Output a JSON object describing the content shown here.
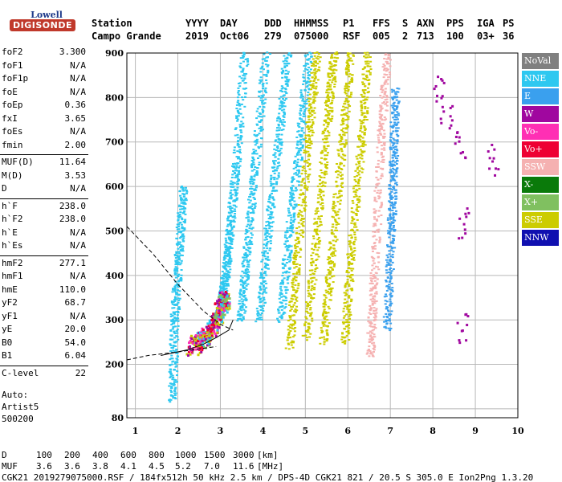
{
  "logo": {
    "line1": "Lowell",
    "line2": "DIGISONDE"
  },
  "header": {
    "labels": [
      "Station",
      "YYYY",
      "DAY",
      "DDD",
      "HHMMSS",
      "P1",
      "FFS",
      "S",
      "AXN",
      "PPS",
      "IGA",
      "PS"
    ],
    "values": [
      "Campo Grande",
      "2019",
      "Oct06",
      "279",
      "075000",
      "RSF",
      "005",
      "2",
      "713",
      "100",
      "03+",
      "36"
    ]
  },
  "params": [
    [
      [
        "foF2",
        "3.300"
      ],
      [
        "foF1",
        "N/A"
      ],
      [
        "foF1p",
        "N/A"
      ],
      [
        "foE",
        "N/A"
      ],
      [
        "foEp",
        "0.36"
      ],
      [
        "fxI",
        "3.65"
      ],
      [
        "foEs",
        "N/A"
      ],
      [
        "fmin",
        "2.00"
      ]
    ],
    [
      [
        "MUF(D)",
        "11.64"
      ],
      [
        "M(D)",
        "3.53"
      ],
      [
        "D",
        "N/A"
      ]
    ],
    [
      [
        "h`F",
        "238.0"
      ],
      [
        "h`F2",
        "238.0"
      ],
      [
        "h`E",
        "N/A"
      ],
      [
        "h`Es",
        "N/A"
      ]
    ],
    [
      [
        "hmF2",
        "277.1"
      ],
      [
        "hmF1",
        "N/A"
      ],
      [
        "hmE",
        "110.0"
      ],
      [
        "yF2",
        "68.7"
      ],
      [
        "yF1",
        "N/A"
      ],
      [
        "yE",
        "20.0"
      ],
      [
        "B0",
        "54.0"
      ],
      [
        "B1",
        "6.04"
      ]
    ],
    [
      [
        "C-level",
        "22"
      ]
    ]
  ],
  "auto": {
    "line1": "Auto:",
    "line2": "Artist5",
    "line3": "500200"
  },
  "legend": [
    {
      "label": "NoVal",
      "color": "#808080"
    },
    {
      "label": "NNE",
      "color": "#2ec8f0"
    },
    {
      "label": "E",
      "color": "#3aa0ee"
    },
    {
      "label": "W",
      "color": "#a0079f"
    },
    {
      "label": "Vo-",
      "color": "#ff2fb4"
    },
    {
      "label": "Vo+",
      "color": "#ee0033"
    },
    {
      "label": "SSW",
      "color": "#f5b1b1"
    },
    {
      "label": "X-",
      "color": "#0a7a0a"
    },
    {
      "label": "X+",
      "color": "#80c060"
    },
    {
      "label": "SSE",
      "color": "#cccc00"
    },
    {
      "label": "NNW",
      "color": "#1010b0"
    }
  ],
  "footer": {
    "d_label": "D",
    "d_values": [
      "100",
      "200",
      "400",
      "600",
      "800",
      "1000",
      "1500",
      "3000"
    ],
    "d_unit": "[km]",
    "muf_label": "MUF",
    "muf_values": [
      "3.6",
      "3.6",
      "3.8",
      "4.1",
      "4.5",
      "5.2",
      "7.0",
      "11.6"
    ],
    "muf_unit": "[MHz]",
    "info": "CGK21_2019279075000.RSF / 184fx512h 50 kHz 2.5 km / DPS-4D CGK21 821 / 20.5 S 305.0 E Ion2Png 1.3.20"
  },
  "chart_data": {
    "type": "scatter",
    "xlim": [
      0.8,
      10
    ],
    "ylim": [
      80,
      900
    ],
    "x_ticks": [
      1,
      2,
      3,
      4,
      5,
      6,
      7,
      8,
      9,
      10
    ],
    "y_ticks": [
      100,
      200,
      300,
      400,
      500,
      600,
      700,
      800,
      900
    ],
    "y_tick_labels": [
      "",
      "200",
      "300",
      "400",
      "500",
      "600",
      "700",
      "800",
      "900"
    ],
    "y_bottom_label": "80",
    "grid": true,
    "echo_traces": [
      {
        "color": "#2ec8f0",
        "points": [
          [
            2.9,
            300
          ],
          [
            3.0,
            330
          ],
          [
            3.1,
            400
          ],
          [
            3.2,
            500
          ],
          [
            3.35,
            650
          ],
          [
            3.55,
            900
          ]
        ]
      },
      {
        "color": "#2ec8f0",
        "points": [
          [
            3.45,
            300
          ],
          [
            3.6,
            450
          ],
          [
            3.8,
            650
          ],
          [
            4.05,
            900
          ]
        ]
      },
      {
        "color": "#2ec8f0",
        "points": [
          [
            3.9,
            300
          ],
          [
            4.1,
            500
          ],
          [
            4.35,
            700
          ],
          [
            4.55,
            900
          ]
        ]
      },
      {
        "color": "#2ec8f0",
        "points": [
          [
            4.4,
            300
          ],
          [
            4.6,
            500
          ],
          [
            4.85,
            700
          ],
          [
            5.05,
            900
          ]
        ]
      },
      {
        "color": "#cccc00",
        "points": [
          [
            4.6,
            240
          ],
          [
            4.8,
            450
          ],
          [
            5.05,
            700
          ],
          [
            5.25,
            900
          ]
        ]
      },
      {
        "color": "#cccc00",
        "points": [
          [
            5.0,
            260
          ],
          [
            5.25,
            500
          ],
          [
            5.5,
            750
          ],
          [
            5.65,
            900
          ]
        ]
      },
      {
        "color": "#cccc00",
        "points": [
          [
            5.4,
            250
          ],
          [
            5.6,
            450
          ],
          [
            5.85,
            700
          ],
          [
            6.05,
            900
          ]
        ]
      },
      {
        "color": "#cccc00",
        "points": [
          [
            5.9,
            250
          ],
          [
            6.05,
            450
          ],
          [
            6.3,
            700
          ],
          [
            6.45,
            900
          ]
        ]
      },
      {
        "color": "#f5b1b1",
        "points": [
          [
            6.5,
            220
          ],
          [
            6.6,
            400
          ],
          [
            6.75,
            700
          ],
          [
            6.9,
            900
          ]
        ]
      },
      {
        "color": "#2ec8f0",
        "points": [
          [
            1.85,
            120
          ],
          [
            1.9,
            300
          ],
          [
            2.0,
            450
          ],
          [
            2.1,
            600
          ]
        ]
      },
      {
        "color": "#3aa0ee",
        "points": [
          [
            6.9,
            280
          ],
          [
            7.0,
            500
          ],
          [
            7.05,
            650
          ],
          [
            7.1,
            820
          ]
        ]
      }
    ],
    "low_cluster": {
      "color": "#ee0033",
      "points": [
        [
          2.3,
          240
        ],
        [
          2.6,
          260
        ],
        [
          2.85,
          290
        ],
        [
          3.0,
          330
        ],
        [
          3.1,
          350
        ]
      ]
    },
    "profile_curve": {
      "color": "#000000",
      "points": [
        [
          1.6,
          220
        ],
        [
          2.2,
          232
        ],
        [
          2.6,
          245
        ],
        [
          2.9,
          260
        ],
        [
          3.2,
          277
        ],
        [
          3.3,
          300
        ]
      ]
    },
    "dashed_curve": {
      "color": "#000000",
      "points": [
        [
          0.8,
          510
        ],
        [
          1.4,
          450
        ],
        [
          2.0,
          380
        ],
        [
          2.6,
          320
        ],
        [
          3.0,
          290
        ],
        [
          3.3,
          277
        ]
      ]
    },
    "lower_dashed": {
      "color": "#000000",
      "points": [
        [
          0.8,
          210
        ],
        [
          1.3,
          220
        ],
        [
          2.0,
          228
        ],
        [
          2.9,
          240
        ]
      ]
    },
    "w_scatter": {
      "color": "#a0079f",
      "points": [
        [
          8.1,
          820
        ],
        [
          8.3,
          760
        ],
        [
          8.6,
          700
        ],
        [
          8.7,
          520
        ],
        [
          8.7,
          280
        ],
        [
          9.4,
          660
        ]
      ]
    }
  }
}
